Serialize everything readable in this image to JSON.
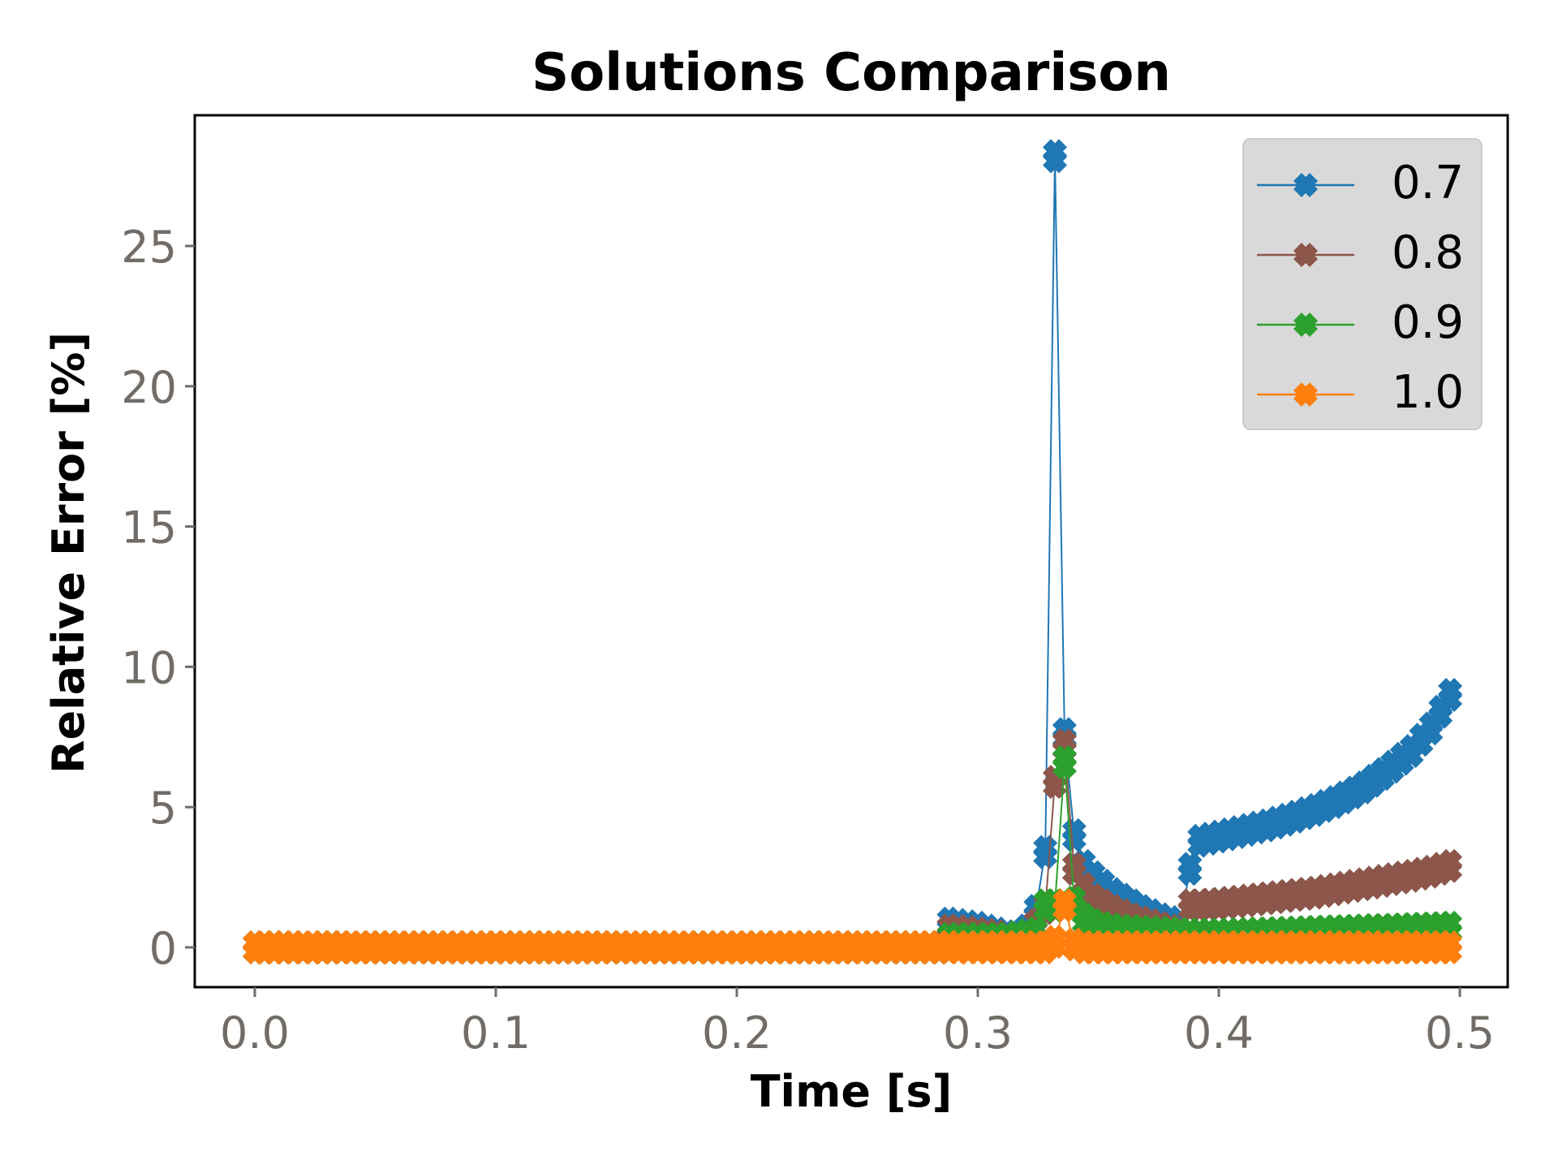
{
  "chart_data": {
    "type": "line",
    "title": "Solutions Comparison",
    "xlabel": "Time [s]",
    "ylabel": "Relative Error [%]",
    "xlim": [
      -0.025,
      0.522
    ],
    "ylim": [
      -1.4,
      29.6
    ],
    "xticks": [
      0.0,
      0.1,
      0.2,
      0.3,
      0.4,
      0.5
    ],
    "xtick_labels": [
      "0.0",
      "0.1",
      "0.2",
      "0.3",
      "0.4",
      "0.5"
    ],
    "yticks": [
      0,
      5,
      10,
      15,
      20,
      25
    ],
    "ytick_labels": [
      "0",
      "5",
      "10",
      "15",
      "20",
      "25"
    ],
    "grid": false,
    "legend_position": "upper right",
    "marker": "X (filled)",
    "x_start": 0.0,
    "x_step": 0.004,
    "x_count": 125,
    "series": [
      {
        "name": "0.7",
        "color": "#1f77b4",
        "points": [
          [
            0.0,
            0
          ],
          [
            0.284,
            0
          ],
          [
            0.288,
            0.85
          ],
          [
            0.292,
            0.8
          ],
          [
            0.296,
            0.75
          ],
          [
            0.3,
            0.7
          ],
          [
            0.304,
            0.6
          ],
          [
            0.308,
            0.5
          ],
          [
            0.312,
            0.4
          ],
          [
            0.316,
            0.3
          ],
          [
            0.32,
            0.6
          ],
          [
            0.324,
            1.3
          ],
          [
            0.328,
            3.4
          ],
          [
            0.332,
            28.2
          ],
          [
            0.336,
            7.6
          ],
          [
            0.34,
            4.0
          ],
          [
            0.344,
            2.9
          ],
          [
            0.348,
            2.5
          ],
          [
            0.352,
            2.2
          ],
          [
            0.356,
            1.9
          ],
          [
            0.36,
            1.7
          ],
          [
            0.364,
            1.5
          ],
          [
            0.368,
            1.3
          ],
          [
            0.372,
            1.15
          ],
          [
            0.376,
            1.0
          ],
          [
            0.38,
            0.9
          ],
          [
            0.384,
            0.8
          ],
          [
            0.388,
            2.8
          ],
          [
            0.392,
            3.8
          ],
          [
            0.4,
            3.95
          ],
          [
            0.41,
            4.15
          ],
          [
            0.42,
            4.35
          ],
          [
            0.43,
            4.6
          ],
          [
            0.44,
            4.9
          ],
          [
            0.45,
            5.25
          ],
          [
            0.46,
            5.7
          ],
          [
            0.47,
            6.3
          ],
          [
            0.48,
            7.0
          ],
          [
            0.488,
            7.8
          ],
          [
            0.492,
            8.4
          ],
          [
            0.496,
            9.0
          ]
        ]
      },
      {
        "name": "0.8",
        "color": "#8c564b",
        "points": [
          [
            0.0,
            0
          ],
          [
            0.284,
            0
          ],
          [
            0.288,
            0.6
          ],
          [
            0.292,
            0.58
          ],
          [
            0.296,
            0.55
          ],
          [
            0.3,
            0.5
          ],
          [
            0.304,
            0.45
          ],
          [
            0.308,
            0.4
          ],
          [
            0.312,
            0.3
          ],
          [
            0.316,
            0.25
          ],
          [
            0.32,
            0.4
          ],
          [
            0.324,
            0.8
          ],
          [
            0.328,
            1.4
          ],
          [
            0.332,
            5.9
          ],
          [
            0.336,
            7.2
          ],
          [
            0.34,
            2.8
          ],
          [
            0.344,
            2.1
          ],
          [
            0.348,
            1.7
          ],
          [
            0.352,
            1.5
          ],
          [
            0.356,
            1.3
          ],
          [
            0.36,
            1.15
          ],
          [
            0.364,
            1.0
          ],
          [
            0.368,
            0.9
          ],
          [
            0.372,
            0.8
          ],
          [
            0.376,
            0.7
          ],
          [
            0.38,
            0.6
          ],
          [
            0.384,
            0.5
          ],
          [
            0.388,
            1.5
          ],
          [
            0.392,
            1.5
          ],
          [
            0.4,
            1.55
          ],
          [
            0.41,
            1.65
          ],
          [
            0.42,
            1.75
          ],
          [
            0.43,
            1.85
          ],
          [
            0.44,
            1.95
          ],
          [
            0.45,
            2.1
          ],
          [
            0.46,
            2.25
          ],
          [
            0.47,
            2.4
          ],
          [
            0.48,
            2.55
          ],
          [
            0.488,
            2.7
          ],
          [
            0.496,
            2.9
          ]
        ]
      },
      {
        "name": "0.9",
        "color": "#2ca02c",
        "points": [
          [
            0.0,
            0
          ],
          [
            0.284,
            0
          ],
          [
            0.288,
            0.3
          ],
          [
            0.3,
            0.3
          ],
          [
            0.312,
            0.3
          ],
          [
            0.324,
            0.5
          ],
          [
            0.328,
            1.5
          ],
          [
            0.332,
            1.5
          ],
          [
            0.336,
            6.6
          ],
          [
            0.34,
            1.6
          ],
          [
            0.344,
            1.0
          ],
          [
            0.348,
            0.8
          ],
          [
            0.352,
            0.7
          ],
          [
            0.36,
            0.6
          ],
          [
            0.37,
            0.55
          ],
          [
            0.38,
            0.5
          ],
          [
            0.39,
            0.45
          ],
          [
            0.4,
            0.45
          ],
          [
            0.42,
            0.5
          ],
          [
            0.44,
            0.55
          ],
          [
            0.46,
            0.6
          ],
          [
            0.48,
            0.65
          ],
          [
            0.496,
            0.7
          ]
        ]
      },
      {
        "name": "1.0",
        "color": "#ff7f0e",
        "points": [
          [
            0.0,
            0
          ],
          [
            0.328,
            0
          ],
          [
            0.332,
            0.2
          ],
          [
            0.336,
            1.5
          ],
          [
            0.34,
            0.1
          ],
          [
            0.344,
            0
          ],
          [
            0.496,
            0
          ]
        ]
      }
    ]
  },
  "legend": {
    "items": [
      {
        "label": "0.7",
        "color": "#1f77b4"
      },
      {
        "label": "0.8",
        "color": "#8c564b"
      },
      {
        "label": "0.9",
        "color": "#2ca02c"
      },
      {
        "label": "1.0",
        "color": "#ff7f0e"
      }
    ]
  }
}
